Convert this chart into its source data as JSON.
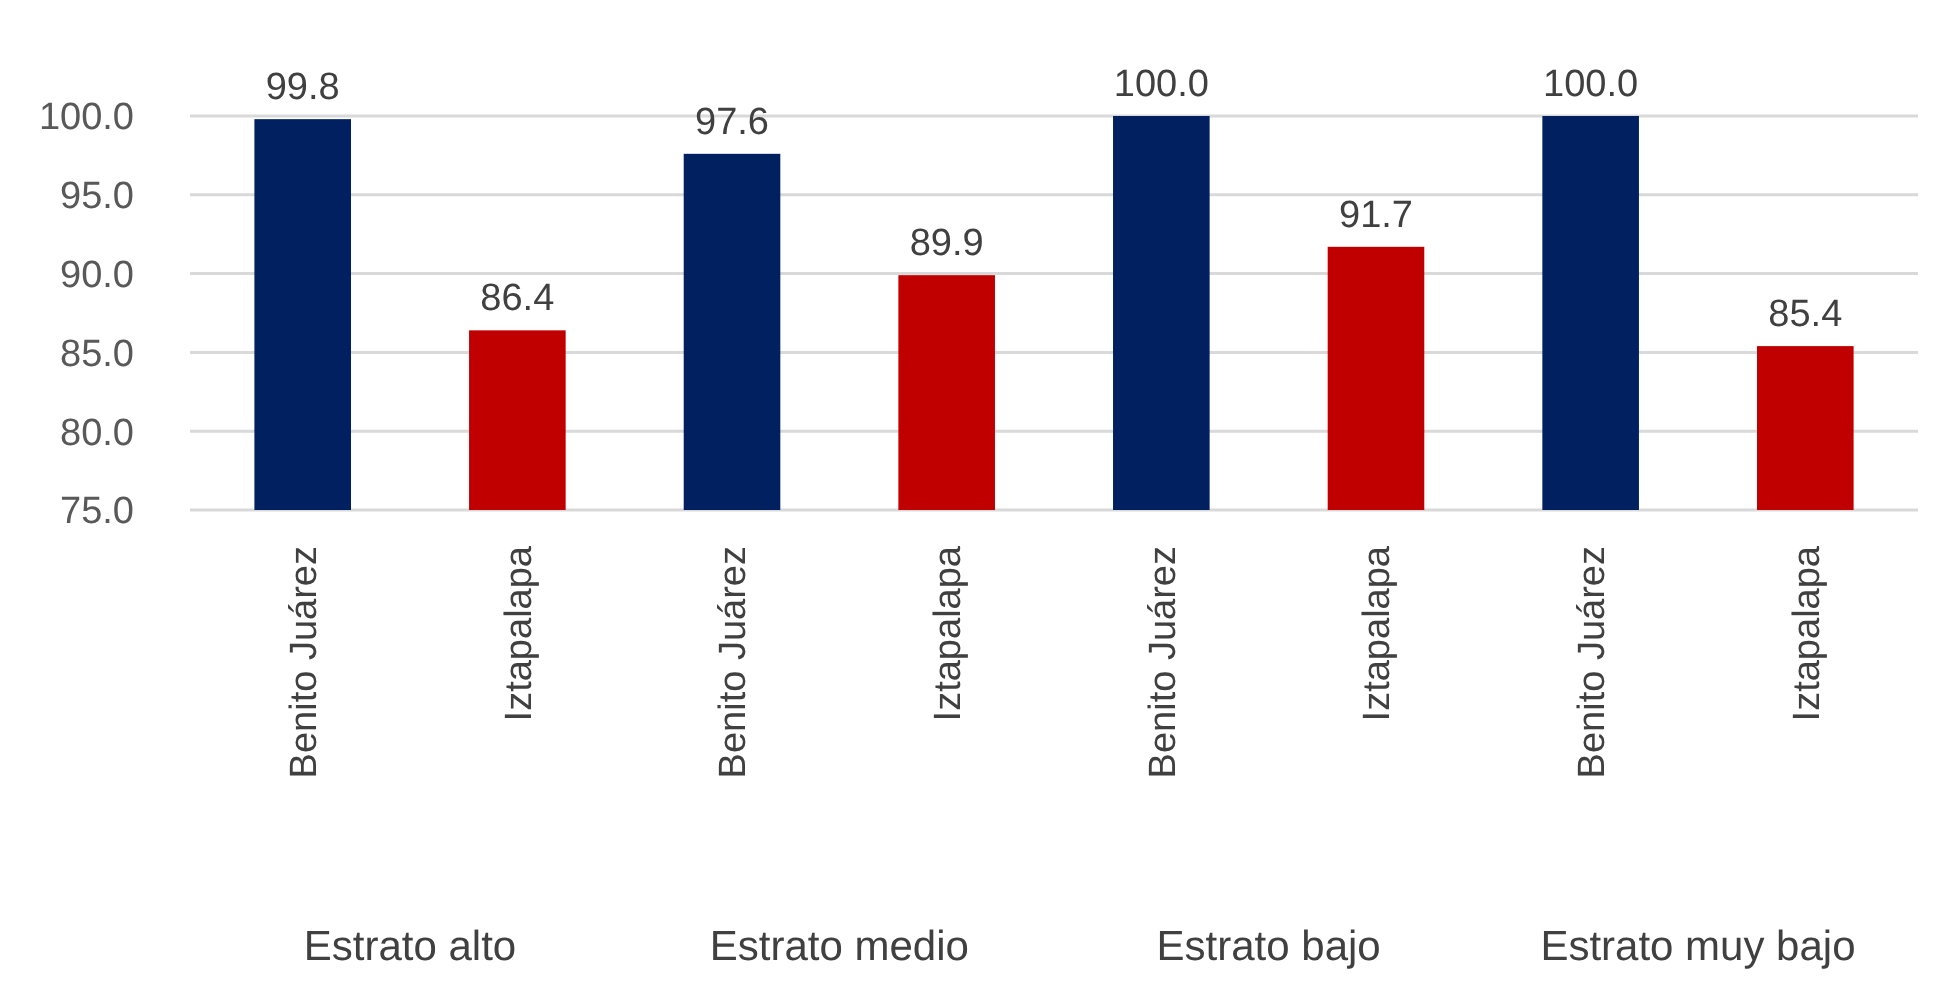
{
  "chart_data": {
    "type": "bar",
    "categories": [
      "Benito Juárez",
      "Iztapalapa",
      "Benito Juárez",
      "Iztapalapa",
      "Benito Juárez",
      "Iztapalapa",
      "Benito Juárez",
      "Iztapalapa"
    ],
    "values": [
      99.8,
      86.4,
      97.6,
      89.9,
      100.0,
      91.7,
      100.0,
      85.4
    ],
    "colors": [
      "#002060",
      "#c00000",
      "#002060",
      "#c00000",
      "#002060",
      "#c00000",
      "#002060",
      "#c00000"
    ],
    "value_labels": [
      "99.8",
      "86.4",
      "97.6",
      "89.9",
      "100.0",
      "91.7",
      "100.0",
      "85.4"
    ],
    "ylim": [
      75,
      100
    ],
    "yticks": [
      {
        "value": 75,
        "label": "75.0"
      },
      {
        "value": 80,
        "label": "80.0"
      },
      {
        "value": 85,
        "label": "85.0"
      },
      {
        "value": 90,
        "label": "90.0"
      },
      {
        "value": 95,
        "label": "95.0"
      },
      {
        "value": 100,
        "label": "100.0"
      }
    ],
    "grid": "y",
    "annotations": [
      "Estrato alto",
      "Estrato medio",
      "Estrato bajo",
      "Estrato muy bajo"
    ]
  }
}
